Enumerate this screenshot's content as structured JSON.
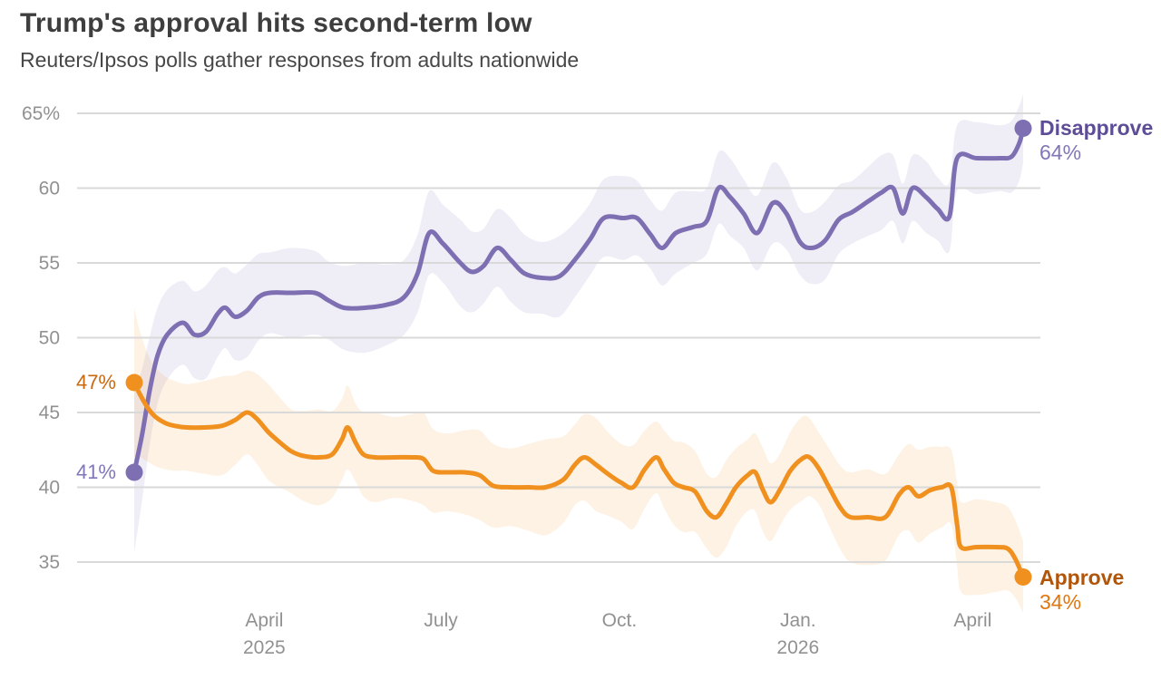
{
  "header": {
    "title": "Trump's approval hits second-term low",
    "subtitle": "Reuters/Ipsos polls gather responses from adults nationwide"
  },
  "chart_data": {
    "type": "line",
    "title": "Trump's approval hits second-term low",
    "subtitle": "Reuters/Ipsos polls gather responses from adults nationwide",
    "grid_color": "#d9d9d9",
    "tick_color": "#919191",
    "y_axis": {
      "min": 35,
      "max": 65,
      "ticks": [
        {
          "v": 65,
          "label": "65%"
        },
        {
          "v": 60,
          "label": "60"
        },
        {
          "v": 55,
          "label": "55"
        },
        {
          "v": 50,
          "label": "50"
        },
        {
          "v": 45,
          "label": "45"
        },
        {
          "v": 40,
          "label": "40"
        },
        {
          "v": 35,
          "label": "35"
        }
      ]
    },
    "x_axis": {
      "start": "2025-01-24",
      "end": "2026-04-27",
      "ticks": [
        {
          "date": "2025-04-01",
          "label": "April",
          "sub": "2025"
        },
        {
          "date": "2025-07-01",
          "label": "July",
          "sub": ""
        },
        {
          "date": "2025-10-01",
          "label": "Oct.",
          "sub": ""
        },
        {
          "date": "2026-01-01",
          "label": "Jan.",
          "sub": "2026"
        },
        {
          "date": "2026-04-01",
          "label": "April",
          "sub": ""
        }
      ]
    },
    "series": [
      {
        "name": "Disapprove",
        "color": "#7e6fb3",
        "band_opacity": 0.12,
        "name_color": "#5e4d96",
        "value_color": "#8276b8",
        "start_label": "41%",
        "end_label": "Disapprove",
        "end_value": "64%",
        "points": [
          [
            "2025-01-24",
            41,
            5.4
          ],
          [
            "2025-01-28",
            43.5,
            4.4
          ],
          [
            "2025-02-01",
            46.5,
            3.6
          ],
          [
            "2025-02-05",
            48.8,
            3.2
          ],
          [
            "2025-02-10",
            50.2,
            3.0
          ],
          [
            "2025-02-18",
            51,
            2.8
          ],
          [
            "2025-02-24",
            50.2,
            2.9
          ],
          [
            "2025-03-02",
            50.4,
            3.1
          ],
          [
            "2025-03-08",
            51.6,
            2.9
          ],
          [
            "2025-03-12",
            52,
            2.7
          ],
          [
            "2025-03-17",
            51.4,
            2.9
          ],
          [
            "2025-03-23",
            51.8,
            3.1
          ],
          [
            "2025-03-29",
            52.7,
            2.9
          ],
          [
            "2025-04-04",
            53,
            2.7
          ],
          [
            "2025-04-15",
            53,
            3.0
          ],
          [
            "2025-04-27",
            53,
            2.8
          ],
          [
            "2025-05-04",
            52.5,
            2.6
          ],
          [
            "2025-05-12",
            52,
            2.8
          ],
          [
            "2025-05-23",
            52,
            3.0
          ],
          [
            "2025-06-03",
            52.2,
            2.7
          ],
          [
            "2025-06-12",
            52.7,
            2.5
          ],
          [
            "2025-06-19",
            54.3,
            2.6
          ],
          [
            "2025-06-25",
            57,
            2.8
          ],
          [
            "2025-07-02",
            56.3,
            2.6
          ],
          [
            "2025-07-11",
            55,
            2.9
          ],
          [
            "2025-07-17",
            54.4,
            2.7
          ],
          [
            "2025-07-23",
            54.8,
            2.5
          ],
          [
            "2025-07-30",
            56,
            2.6
          ],
          [
            "2025-08-06",
            55.2,
            2.8
          ],
          [
            "2025-08-13",
            54.3,
            2.6
          ],
          [
            "2025-08-22",
            54,
            2.4
          ],
          [
            "2025-08-31",
            54.1,
            2.7
          ],
          [
            "2025-09-08",
            55.2,
            2.5
          ],
          [
            "2025-09-16",
            56.6,
            2.4
          ],
          [
            "2025-09-23",
            58,
            2.6
          ],
          [
            "2025-10-03",
            58,
            2.8
          ],
          [
            "2025-10-10",
            58,
            2.5
          ],
          [
            "2025-10-17",
            56.9,
            2.3
          ],
          [
            "2025-10-23",
            56,
            2.5
          ],
          [
            "2025-10-30",
            57,
            2.7
          ],
          [
            "2025-11-08",
            57.4,
            2.4
          ],
          [
            "2025-11-15",
            57.8,
            2.2
          ],
          [
            "2025-11-21",
            60,
            2.4
          ],
          [
            "2025-11-27",
            59.4,
            2.6
          ],
          [
            "2025-12-04",
            58.3,
            2.3
          ],
          [
            "2025-12-11",
            57,
            2.5
          ],
          [
            "2025-12-19",
            59,
            2.7
          ],
          [
            "2025-12-26",
            58.3,
            2.4
          ],
          [
            "2026-01-02",
            56.4,
            2.2
          ],
          [
            "2026-01-08",
            56,
            2.4
          ],
          [
            "2026-01-15",
            56.5,
            2.6
          ],
          [
            "2026-01-22",
            57.9,
            2.3
          ],
          [
            "2026-01-29",
            58.4,
            2.1
          ],
          [
            "2026-02-06",
            59.1,
            2.3
          ],
          [
            "2026-02-13",
            59.7,
            2.5
          ],
          [
            "2026-02-19",
            60,
            2.2
          ],
          [
            "2026-02-24",
            58.3,
            2.0
          ],
          [
            "2026-03-01",
            60,
            2.2
          ],
          [
            "2026-03-08",
            59.4,
            2.4
          ],
          [
            "2026-03-14",
            58.6,
            2.1
          ],
          [
            "2026-03-20",
            58.1,
            2.3
          ],
          [
            "2026-03-24",
            62,
            2.2
          ],
          [
            "2026-04-03",
            62,
            2.4
          ],
          [
            "2026-04-15",
            62,
            2.2
          ],
          [
            "2026-04-21",
            62.1,
            2.4
          ],
          [
            "2026-04-25",
            63,
            2.5
          ],
          [
            "2026-04-27",
            64,
            2.3
          ]
        ]
      },
      {
        "name": "Approve",
        "color": "#f0901f",
        "band_opacity": 0.12,
        "name_color": "#b05509",
        "value_color": "#e0770f",
        "start_color": "#c9690f",
        "start_label": "47%",
        "end_label": "Approve",
        "end_value": "34%",
        "points": [
          [
            "2025-01-24",
            47,
            5.0
          ],
          [
            "2025-01-27",
            46.2,
            4.2
          ],
          [
            "2025-01-31",
            45.3,
            3.6
          ],
          [
            "2025-02-04",
            44.7,
            3.3
          ],
          [
            "2025-02-09",
            44.3,
            3.1
          ],
          [
            "2025-02-14",
            44.1,
            3.0
          ],
          [
            "2025-02-20",
            44,
            2.9
          ],
          [
            "2025-03-01",
            44,
            3.1
          ],
          [
            "2025-03-10",
            44.1,
            3.3
          ],
          [
            "2025-03-17",
            44.5,
            3.0
          ],
          [
            "2025-03-23",
            45,
            2.8
          ],
          [
            "2025-03-28",
            44.6,
            3.0
          ],
          [
            "2025-04-03",
            43.7,
            3.2
          ],
          [
            "2025-04-09",
            43,
            3.0
          ],
          [
            "2025-04-15",
            42.4,
            2.8
          ],
          [
            "2025-04-21",
            42.1,
            3.0
          ],
          [
            "2025-04-29",
            42,
            3.2
          ],
          [
            "2025-05-06",
            42.2,
            2.9
          ],
          [
            "2025-05-11",
            43.2,
            2.7
          ],
          [
            "2025-05-14",
            44,
            2.8
          ],
          [
            "2025-05-18",
            43,
            2.6
          ],
          [
            "2025-05-22",
            42.2,
            2.8
          ],
          [
            "2025-05-28",
            42,
            3.0
          ],
          [
            "2025-06-07",
            42,
            2.7
          ],
          [
            "2025-06-16",
            42,
            2.9
          ],
          [
            "2025-06-22",
            41.9,
            3.1
          ],
          [
            "2025-06-27",
            41.1,
            2.8
          ],
          [
            "2025-07-04",
            41,
            2.6
          ],
          [
            "2025-07-13",
            41,
            2.8
          ],
          [
            "2025-07-21",
            40.8,
            3.0
          ],
          [
            "2025-07-28",
            40.1,
            2.8
          ],
          [
            "2025-08-06",
            40,
            2.6
          ],
          [
            "2025-08-15",
            40,
            2.9
          ],
          [
            "2025-08-24",
            40,
            3.2
          ],
          [
            "2025-09-02",
            40.5,
            2.9
          ],
          [
            "2025-09-08",
            41.5,
            2.7
          ],
          [
            "2025-09-13",
            42,
            2.9
          ],
          [
            "2025-09-19",
            41.5,
            3.1
          ],
          [
            "2025-09-25",
            40.9,
            2.8
          ],
          [
            "2025-10-02",
            40.3,
            2.6
          ],
          [
            "2025-10-08",
            40,
            2.8
          ],
          [
            "2025-10-14",
            41.2,
            2.6
          ],
          [
            "2025-10-20",
            42,
            2.4
          ],
          [
            "2025-10-24",
            41.2,
            2.6
          ],
          [
            "2025-10-29",
            40.3,
            2.8
          ],
          [
            "2025-11-03",
            40,
            3.0
          ],
          [
            "2025-11-09",
            39.7,
            2.7
          ],
          [
            "2025-11-15",
            38.4,
            2.5
          ],
          [
            "2025-11-20",
            38,
            2.7
          ],
          [
            "2025-11-25",
            38.9,
            2.9
          ],
          [
            "2025-11-30",
            40,
            2.6
          ],
          [
            "2025-12-06",
            40.8,
            2.4
          ],
          [
            "2025-12-10",
            41,
            2.6
          ],
          [
            "2025-12-14",
            39.8,
            2.8
          ],
          [
            "2025-12-18",
            39,
            2.6
          ],
          [
            "2025-12-23",
            39.9,
            2.4
          ],
          [
            "2025-12-28",
            41.1,
            2.6
          ],
          [
            "2026-01-03",
            41.9,
            2.8
          ],
          [
            "2026-01-07",
            42,
            2.6
          ],
          [
            "2026-01-12",
            41.2,
            2.4
          ],
          [
            "2026-01-17",
            40,
            2.6
          ],
          [
            "2026-01-23",
            38.6,
            2.8
          ],
          [
            "2026-01-28",
            38,
            3.0
          ],
          [
            "2026-02-06",
            38,
            3.2
          ],
          [
            "2026-02-15",
            38,
            2.9
          ],
          [
            "2026-02-22",
            39.5,
            2.7
          ],
          [
            "2026-02-27",
            40,
            2.9
          ],
          [
            "2026-03-04",
            39.4,
            3.1
          ],
          [
            "2026-03-10",
            39.8,
            2.9
          ],
          [
            "2026-03-16",
            40,
            2.7
          ],
          [
            "2026-03-21",
            40,
            2.5
          ],
          [
            "2026-03-24",
            37.5,
            2.8
          ],
          [
            "2026-03-26",
            36,
            3.0
          ],
          [
            "2026-04-03",
            36,
            3.2
          ],
          [
            "2026-04-13",
            36,
            3.0
          ],
          [
            "2026-04-19",
            35.9,
            2.8
          ],
          [
            "2026-04-23",
            35.2,
            2.6
          ],
          [
            "2026-04-27",
            34,
            2.4
          ]
        ]
      }
    ]
  }
}
